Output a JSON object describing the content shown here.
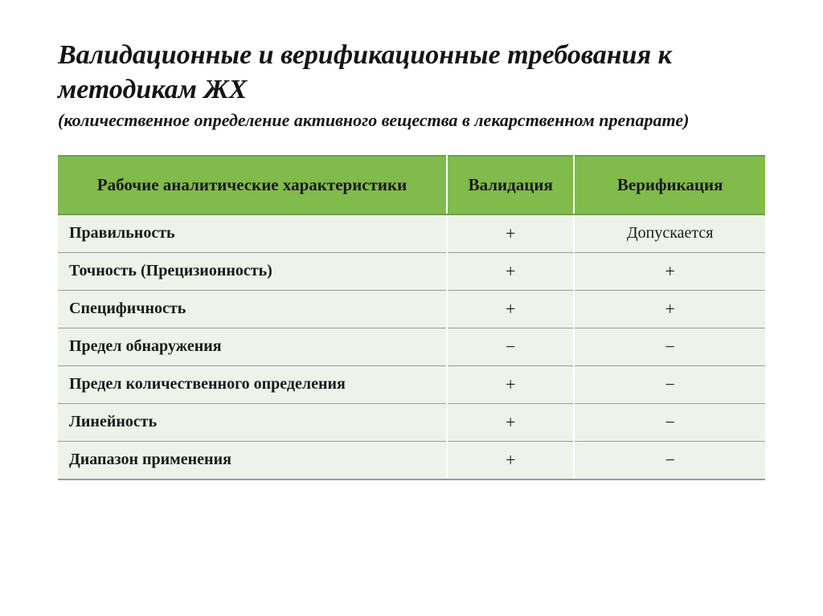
{
  "title": {
    "main": "Валидационные и верификационные требования к методикам ЖХ",
    "sub": "(количественное определение активного вещества в лекарственном препарате)"
  },
  "table": {
    "type": "table",
    "header_bg": "#80bb4b",
    "row_bg": "#eef3e9",
    "border_color": "#9a9a9a",
    "header_fontsize": 21,
    "body_fontsize": 20,
    "columns": [
      {
        "key": "char",
        "label": "Рабочие аналитические характеристики",
        "width_pct": 55,
        "align": "left"
      },
      {
        "key": "valid",
        "label": "Валидация",
        "width_pct": 18,
        "align": "center"
      },
      {
        "key": "verif",
        "label": "Верификация",
        "width_pct": 27,
        "align": "center"
      }
    ],
    "rows": [
      {
        "char": "Правильность",
        "valid": "+",
        "verif": "Допускается"
      },
      {
        "char": "Точность (Прецизионность)",
        "valid": "+",
        "verif": "+"
      },
      {
        "char": "Специфичность",
        "valid": "+",
        "verif": "+"
      },
      {
        "char": "Предел обнаружения",
        "valid": "−",
        "verif": "−"
      },
      {
        "char": "Предел количественного определения",
        "valid": "+",
        "verif": "−"
      },
      {
        "char": "Линейность",
        "valid": "+",
        "verif": "−"
      },
      {
        "char": "Диапазон применения",
        "valid": "+",
        "verif": "−"
      }
    ]
  }
}
